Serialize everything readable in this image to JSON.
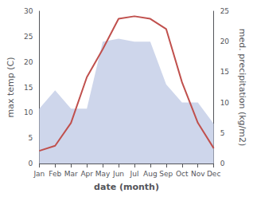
{
  "chart_data": {
    "type": "line",
    "xlabel": "date (month)",
    "ylabel": "max temp (C)",
    "y2label": "med. precipitation (kg/m2)",
    "categories": [
      "Jan",
      "Feb",
      "Mar",
      "Apr",
      "May",
      "Jun",
      "Jul",
      "Aug",
      "Sep",
      "Oct",
      "Nov",
      "Dec"
    ],
    "series": [
      {
        "type": "area",
        "color": "#c5cfe8",
        "axis": "y2",
        "values": [
          9.0,
          12.0,
          9.0,
          9.0,
          20.0,
          20.5,
          20.0,
          20.0,
          13.0,
          10.0,
          10.0,
          6.5
        ]
      },
      {
        "type": "line",
        "color": "#c0504d",
        "values": [
          2.5,
          3.5,
          8.0,
          17.0,
          22.5,
          28.5,
          29.0,
          28.5,
          26.5,
          16.0,
          8.0,
          3.0
        ]
      }
    ],
    "ylim": [
      0,
      30
    ],
    "yticks": [
      0,
      5,
      10,
      15,
      20,
      25,
      30
    ],
    "y2lim": [
      0,
      25
    ],
    "y2ticks": [
      0,
      5,
      10,
      15,
      20,
      25
    ],
    "grid": false
  }
}
